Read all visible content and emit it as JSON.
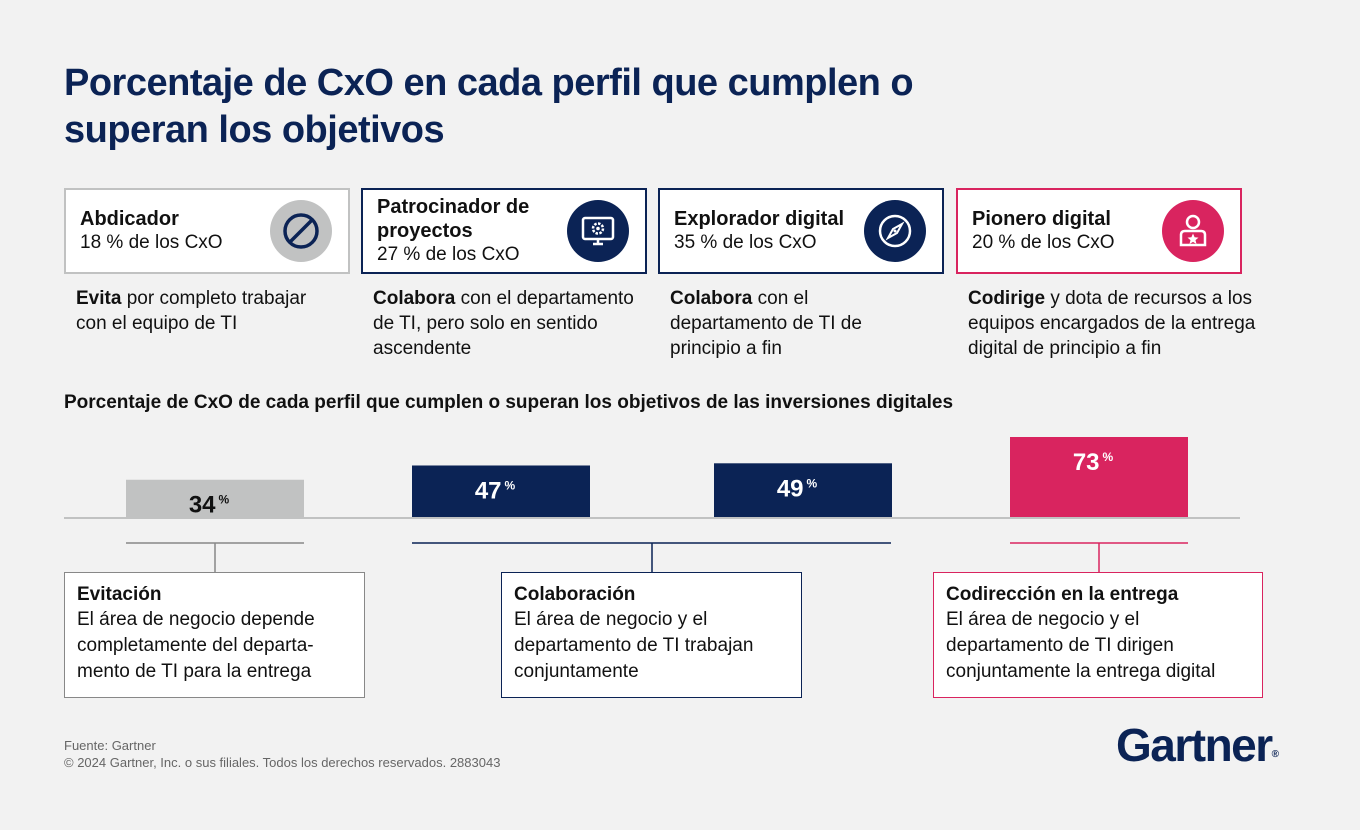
{
  "title": "Porcentaje de CxO en cada perfil que cumplen o superan los objetivos",
  "colors": {
    "navy": "#0b2355",
    "gray": "#c1c2c2",
    "pink": "#d9245f",
    "text": "#111111"
  },
  "profiles": [
    {
      "name": "Abdicador",
      "pct": "18 % de los CxO",
      "icon": "prohibited-icon",
      "desc_bold": "Evita",
      "desc_rest": " por completo trabajar con el equipo de TI"
    },
    {
      "name": "Patrocinador de proyectos",
      "pct": "27 % de los CxO",
      "icon": "monitor-gear-icon",
      "desc_bold": "Colabora",
      "desc_rest": " con el departamento de TI, pero solo en sentido ascendente"
    },
    {
      "name": "Explorador digital",
      "pct": "35 % de los CxO",
      "icon": "compass-icon",
      "desc_bold": "Colabora",
      "desc_rest": " con el departamento de TI de principio a fin"
    },
    {
      "name": "Pionero digital",
      "pct": "20 % de los CxO",
      "icon": "person-star-icon",
      "desc_bold": "Codirige",
      "desc_rest": " y dota de recursos a los equipos encargados de la entrega digital de principio a fin"
    }
  ],
  "chart_subtitle": "Porcentaje de CxO de cada perfil que cumplen o superan los objetivos de las inversiones digitales",
  "chart_data": {
    "type": "bar",
    "categories": [
      "Abdicador",
      "Patrocinador de proyectos",
      "Explorador digital",
      "Pionero digital"
    ],
    "values": [
      34,
      47,
      49,
      73
    ],
    "value_labels": [
      "34",
      "47",
      "49",
      "73"
    ],
    "unit": "%",
    "colors": [
      "#c1c2c2",
      "#0b2355",
      "#0b2355",
      "#d9245f"
    ],
    "ylim": [
      0,
      73
    ]
  },
  "groups": [
    {
      "title": "Evitación",
      "desc": "El área de negocio depende completamente del departa-mento de TI para la entrega"
    },
    {
      "title": "Colaboración",
      "desc": "El área de negocio y el departamento de TI trabajan conjuntamente"
    },
    {
      "title": "Codirección en la entrega",
      "desc": "El área de negocio y el departamento de TI dirigen conjuntamente la entrega digital"
    }
  ],
  "source": "Fuente: Gartner",
  "copyright": "© 2024 Gartner, Inc. o sus filiales. Todos los derechos reservados. 2883043",
  "brand": "Gartner",
  "brand_mark": "®"
}
